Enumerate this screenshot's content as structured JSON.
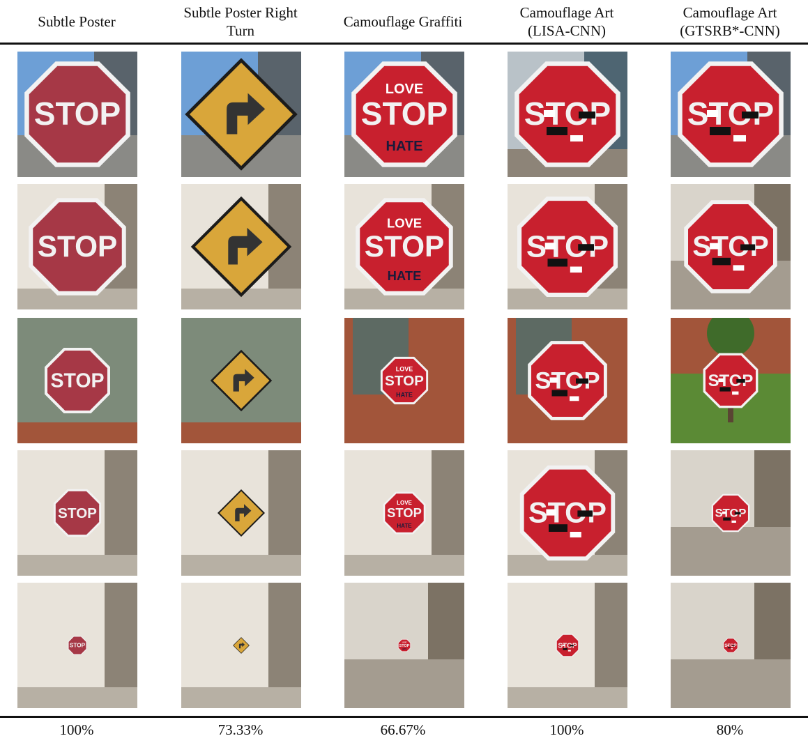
{
  "columns": [
    {
      "title": "Subtle Poster",
      "result": "100%",
      "type": "stop",
      "style": "poster"
    },
    {
      "title": "Subtle Poster Right\nTurn",
      "result": "73.33%",
      "type": "turn",
      "style": "poster"
    },
    {
      "title": "Camouflage Graffiti",
      "result": "66.67%",
      "type": "stop",
      "style": "graffiti"
    },
    {
      "title": "Camouflage Art\n(LISA-CNN)",
      "result": "100%",
      "type": "stop",
      "style": "art"
    },
    {
      "title": "Camouflage Art\n(GTSRB*-CNN)",
      "result": "80%",
      "type": "stop",
      "style": "art"
    }
  ],
  "sign_text": {
    "stop": "STOP",
    "love": "LOVE",
    "hate": "HATE"
  },
  "rows": 5,
  "colors": {
    "stop_red": "#c8202e",
    "sign_yellow": "#d9a63a",
    "sky": "#6d9fd6",
    "wall": "#e8e3da",
    "brick": "#a2553a",
    "grass": "#5b8a35"
  }
}
